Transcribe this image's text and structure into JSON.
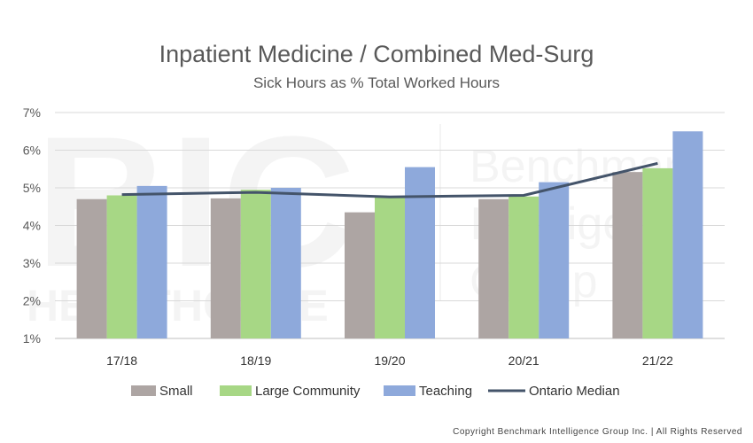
{
  "chart_data": {
    "type": "bar",
    "title": "Inpatient Medicine / Combined Med-Surg",
    "subtitle": "Sick Hours as % Total Worked Hours",
    "categories": [
      "17/18",
      "18/19",
      "19/20",
      "20/21",
      "21/22"
    ],
    "series": [
      {
        "name": "Small",
        "type": "bar",
        "color": "#ADA5A3",
        "values": [
          4.7,
          4.72,
          4.35,
          4.7,
          5.42
        ]
      },
      {
        "name": "Large Community",
        "type": "bar",
        "color": "#A7D785",
        "values": [
          4.8,
          4.95,
          4.78,
          4.77,
          5.52
        ]
      },
      {
        "name": "Teaching",
        "type": "bar",
        "color": "#8EA9DB",
        "values": [
          5.05,
          5.0,
          5.55,
          5.15,
          6.5
        ]
      },
      {
        "name": "Ontario Median",
        "type": "line",
        "color": "#44546A",
        "values": [
          4.82,
          4.88,
          4.76,
          4.8,
          5.65
        ]
      }
    ],
    "y_ticks": [
      "1%",
      "2%",
      "3%",
      "4%",
      "5%",
      "6%",
      "7%"
    ],
    "ylim": [
      1,
      7
    ],
    "grid": true,
    "legend_position": "bottom"
  },
  "watermark": {
    "brand_left": "BIC",
    "brand_left_sub": "HEALTHCARE",
    "brand_right_lines": [
      "Benchmark",
      "Intelligence",
      "Group"
    ]
  },
  "footer": {
    "copyright": "Copyright Benchmark Intelligence Group Inc. | All Rights Reserved"
  }
}
